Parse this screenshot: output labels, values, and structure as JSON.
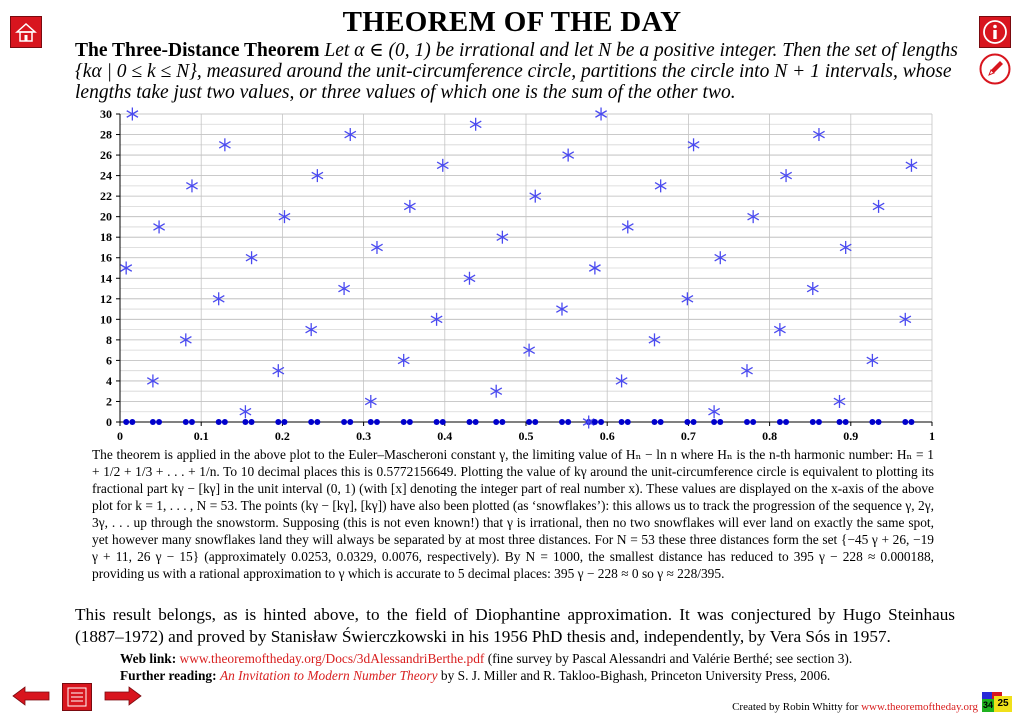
{
  "title": "THEOREM OF THE DAY",
  "statement": {
    "name": "The Three-Distance Theorem",
    "text": " Let α ∈ (0, 1) be irrational and let N be a positive integer. Then the set of lengths {kα | 0 ≤ k ≤ N}, measured around the unit-circumference circle, partitions the circle into N + 1 intervals, whose lengths take just two values, or three values of which one is the sum of the other two."
  },
  "chart_data": {
    "type": "scatter",
    "xlim": [
      0,
      1
    ],
    "ylim": [
      0,
      30
    ],
    "x_ticks": [
      "0",
      "0.1",
      "0.2",
      "0.3",
      "0.4",
      "0.5",
      "0.6",
      "0.7",
      "0.8",
      "0.9",
      "1"
    ],
    "y_ticks": [
      "0",
      "2",
      "4",
      "6",
      "8",
      "10",
      "12",
      "14",
      "16",
      "18",
      "20",
      "22",
      "24",
      "26",
      "28",
      "30"
    ],
    "grid": true,
    "k_range": [
      1,
      53
    ],
    "alpha": 0.5772156649,
    "snowflake_color": "#4a4af0",
    "dot_color": "#0000cc"
  },
  "caption": "The theorem is applied in the above plot to the Euler–Mascheroni constant γ, the limiting value of Hₙ − ln n where Hₙ is the n-th harmonic number: Hₙ = 1 + 1/2 + 1/3 + . . . + 1/n. To 10 decimal places this is 0.5772156649. Plotting the value of kγ around the unit-circumference circle is equivalent to plotting its fractional part kγ − [kγ] in the unit interval (0, 1) (with [x] denoting the integer part of real number x). These values are displayed on the x-axis of the above plot for k = 1, . . . , N = 53. The points (kγ − [kγ], [kγ]) have also been plotted (as ‘snowflakes’): this allows us to track the progression of the sequence γ, 2γ, 3γ, . . . up through the snowstorm. Supposing (this is not even known!) that γ is irrational, then no two snowflakes will ever land on exactly the same spot, yet however many snowflakes land they will always be separated by at most three distances. For N = 53 these three distances form the set {−45 γ + 26, −19 γ + 11, 26 γ − 15} (approximately 0.0253, 0.0329, 0.0076, respectively). By N = 1000, the smallest distance has reduced to 395 γ − 228 ≈ 0.000188, providing us with a rational approximation to γ which is accurate to 5 decimal places: 395 γ − 228 ≈ 0 so γ ≈ 228/395.",
  "closing": "This result belongs, as is hinted above, to the field of Diophantine approximation. It was conjectured by Hugo Steinhaus (1887–1972) and proved by Stanisław Świerczkowski in his 1956 PhD thesis and, independently, by Vera Sós in 1957.",
  "weblink": {
    "label": "Web link:",
    "url": "www.theoremoftheday.org/Docs/3dAlessandriBerthe.pdf",
    "note": " (fine survey by Pascal Alessandri and Valérie Berthé; see section 3)."
  },
  "further": {
    "label": "Further reading:",
    "title": "An Invitation to Modern Number Theory",
    "rest": " by S. J. Miller and R. Takloo-Bighash, Princeton University Press, 2006."
  },
  "footer": {
    "text": "Created by Robin Whitty for ",
    "url": "www.theoremoftheday.org",
    "badge_left": "34",
    "badge_right": "25"
  }
}
